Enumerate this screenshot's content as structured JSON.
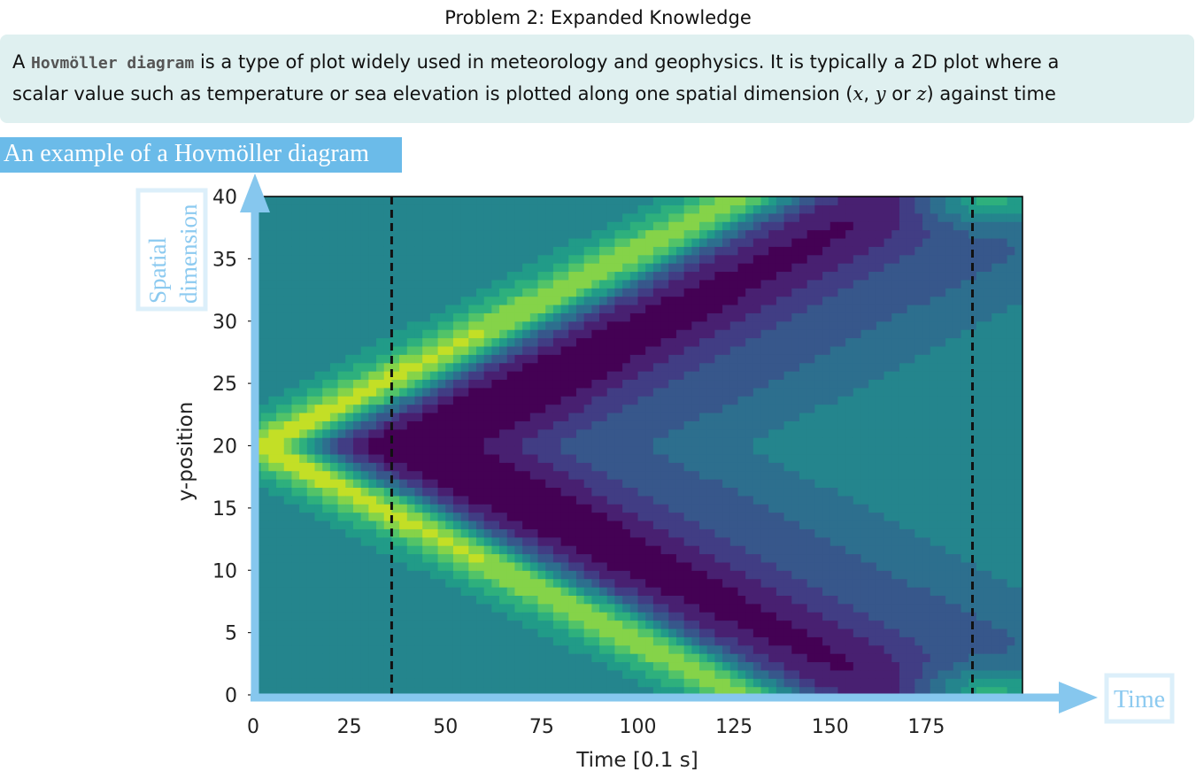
{
  "header": {
    "title": "Problem 2: Expanded Knowledge"
  },
  "info": {
    "text_1": "A ",
    "term": "Hovmöller diagram",
    "text_2": " is a type of plot widely used in meteorology and geophysics. It is typically a 2D plot where a",
    "text_3": "scalar value such as temperature or sea elevation is plotted along one spatial dimension (",
    "var_x": "x",
    "sep_1": ", ",
    "var_y": "y",
    "sep_2": " or ",
    "var_z": "z",
    "text_4": ") against time"
  },
  "example_label": "An example of a Hovmöller diagram",
  "annotations": {
    "spatial_line1": "Spatial",
    "spatial_line2": "dimension",
    "time": "Time"
  },
  "colors": {
    "arrow": "#86c7ee",
    "background_field": "#3b728d"
  },
  "chart_data": {
    "type": "heatmap",
    "xlabel": "Time [0.1 s]",
    "ylabel": "y-position",
    "xlim": [
      0,
      200
    ],
    "ylim": [
      0,
      40
    ],
    "x_ticks": [
      0,
      25,
      50,
      75,
      100,
      125,
      150,
      175
    ],
    "y_ticks": [
      0,
      5,
      10,
      15,
      20,
      25,
      30,
      35,
      40
    ],
    "dashed_vlines": [
      36,
      187
    ],
    "wave_center_y": 20,
    "wave_front_speed": 0.16,
    "positive_pulse_time": 40,
    "negative_trough_time": 87,
    "colormap": [
      "#440154",
      "#3b528b",
      "#21918c",
      "#5ec962",
      "#fde725"
    ]
  }
}
